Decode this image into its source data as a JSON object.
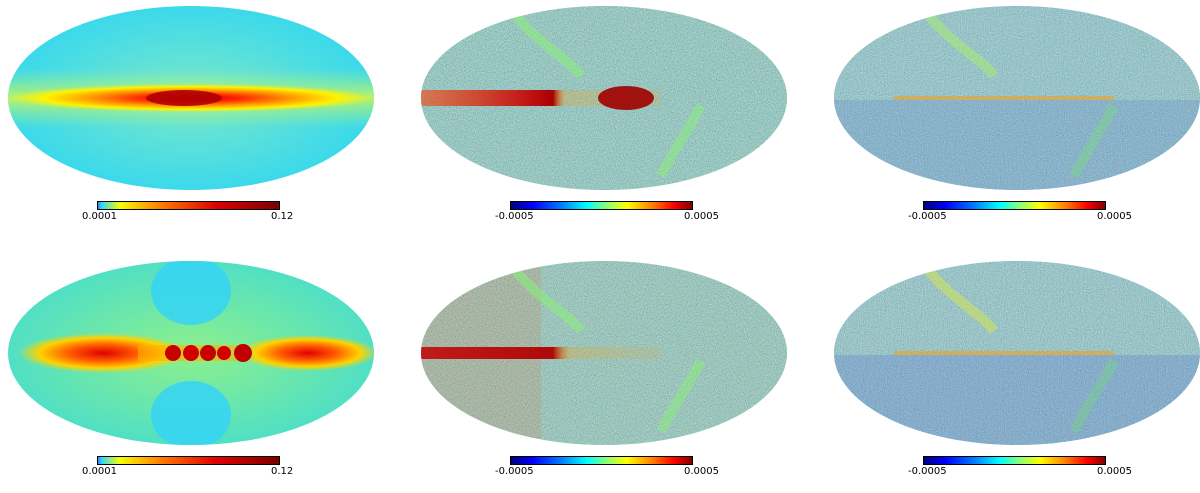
{
  "panels": [
    {
      "id": "a",
      "type": "density",
      "cbar": {
        "min": "0.0001",
        "max": "0.12"
      }
    },
    {
      "id": "b",
      "type": "residual",
      "cbar": {
        "min": "-0.0005",
        "max": "0.0005"
      }
    },
    {
      "id": "c",
      "type": "residual-faint",
      "cbar": {
        "min": "-0.0005",
        "max": "0.0005"
      }
    },
    {
      "id": "d",
      "type": "density-clumps",
      "cbar": {
        "min": "0.0001",
        "max": "0.12"
      }
    },
    {
      "id": "e",
      "type": "residual",
      "cbar": {
        "min": "-0.0005",
        "max": "0.0005"
      }
    },
    {
      "id": "f",
      "type": "residual-faint",
      "cbar": {
        "min": "-0.0005",
        "max": "0.0005"
      }
    }
  ],
  "colors": {
    "density_background": "#35d6ef",
    "density_band": "#ffea00",
    "density_core": "#c40000",
    "residual_noise": [
      "#0000cc",
      "#1f7fff",
      "#25c9f5",
      "#5fe5b5",
      "#8cf06f",
      "#e0f000",
      "#ff9a00",
      "#ff2a00",
      "#a80000"
    ]
  }
}
